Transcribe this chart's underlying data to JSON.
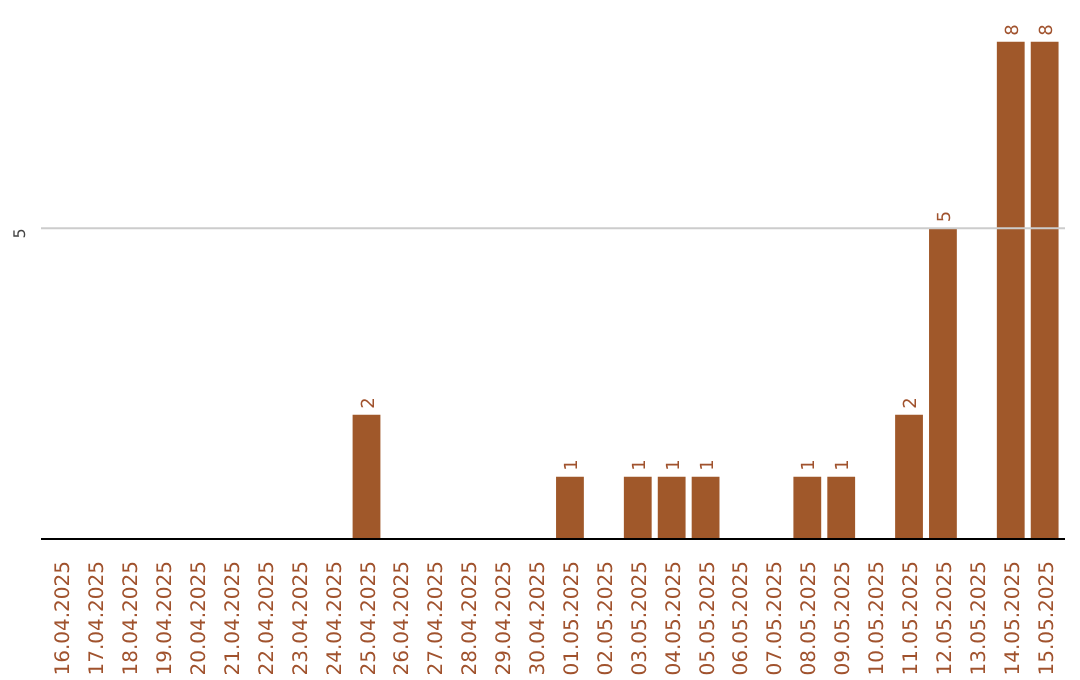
{
  "chart_data": {
    "type": "bar",
    "categories": [
      "16.04.2025",
      "17.04.2025",
      "18.04.2025",
      "19.04.2025",
      "20.04.2025",
      "21.04.2025",
      "22.04.2025",
      "23.04.2025",
      "24.04.2025",
      "25.04.2025",
      "26.04.2025",
      "27.04.2025",
      "28.04.2025",
      "29.04.2025",
      "30.04.2025",
      "01.05.2025",
      "02.05.2025",
      "03.05.2025",
      "04.05.2025",
      "05.05.2025",
      "06.05.2025",
      "07.05.2025",
      "08.05.2025",
      "09.05.2025",
      "10.05.2025",
      "11.05.2025",
      "12.05.2025",
      "13.05.2025",
      "14.05.2025",
      "15.05.2025"
    ],
    "values": [
      0,
      0,
      0,
      0,
      0,
      0,
      0,
      0,
      0,
      2,
      0,
      0,
      0,
      0,
      0,
      1,
      0,
      1,
      1,
      1,
      0,
      0,
      1,
      1,
      0,
      2,
      5,
      0,
      8,
      8
    ],
    "value_labels": [
      null,
      null,
      null,
      null,
      null,
      null,
      null,
      null,
      null,
      "2",
      null,
      null,
      null,
      null,
      null,
      "1",
      null,
      "1",
      "1",
      "1",
      null,
      null,
      "1",
      "1",
      null,
      "2",
      "5",
      null,
      "8",
      "8"
    ],
    "color": "#a0582a",
    "ref_lines": [
      {
        "axis": "y",
        "value": 5,
        "label": "5",
        "color": "#cccccc"
      }
    ]
  }
}
